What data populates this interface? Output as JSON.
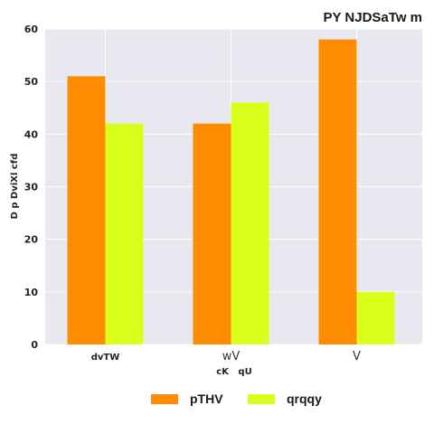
{
  "chart_data": {
    "type": "bar",
    "title": "PY NJDSaTw m",
    "xlabel": "cK   qU",
    "ylabel": "D p DviXl cfd",
    "categories": [
      "dvTW",
      "wV",
      "V"
    ],
    "series": [
      {
        "name": "pTHV",
        "values": [
          51,
          42,
          58
        ],
        "color": "#ff8c00"
      },
      {
        "name": "qrqqy",
        "values": [
          42,
          46,
          10
        ],
        "color": "#d9ff1a"
      }
    ],
    "ylim": [
      0,
      60
    ],
    "yticks": [
      0,
      10,
      20,
      30,
      40,
      50,
      60
    ],
    "grid": true,
    "legend": "bottom-center",
    "background": "#e8e8f0"
  }
}
